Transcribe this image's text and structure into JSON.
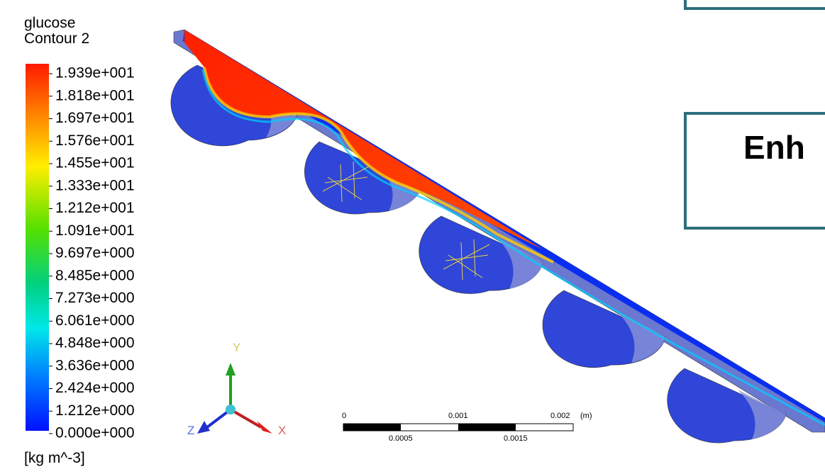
{
  "legend": {
    "variable": "glucose",
    "name": "Contour 2",
    "labels": [
      "1.939e+001",
      "1.818e+001",
      "1.697e+001",
      "1.576e+001",
      "1.455e+001",
      "1.333e+001",
      "1.212e+001",
      "1.091e+001",
      "9.697e+000",
      "8.485e+000",
      "7.273e+000",
      "6.061e+000",
      "4.848e+000",
      "3.636e+000",
      "2.424e+000",
      "1.212e+000",
      "0.000e+000"
    ],
    "unit": "[kg m^-3]"
  },
  "triad": {
    "y": "Y",
    "z": "Z",
    "x": "X"
  },
  "scale_bar": {
    "top_labels": [
      "0",
      "0.001",
      "0.002",
      "(m)"
    ],
    "bottom_labels": [
      "0.0005",
      "0.0015"
    ]
  },
  "overlay": {
    "text": "Enh"
  }
}
